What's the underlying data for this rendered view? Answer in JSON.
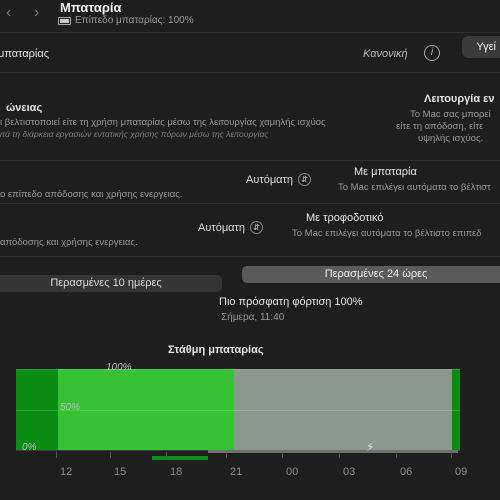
{
  "header": {
    "title": "Μπαταρία",
    "battery_level": "Επίπεδο μπαταρίας: 100%",
    "right_button": "Υγεί"
  },
  "health": {
    "label": "μπαταρίας",
    "value": "Κανονική",
    "info_icon": "info-icon"
  },
  "low_power": {
    "title": "ώνειας",
    "desc_line1": "ι βελτιστοποιεί είτε τη χρήση μπαταρίας μέσω της λειτουργίας χαμηλής ισχύος",
    "desc_line2": "ιτά τη διάρκεια εργασιών εντατικής χρήσης πόρων μέσω της λειτουργίας"
  },
  "high_power": {
    "title": "Λειτουργία εν",
    "desc_line1": "Το Mac σας μπορεί",
    "desc_line2": "είτε τη απόδοση, είτε",
    "desc_line3": "υψηλής ισχύος."
  },
  "battery_row": {
    "left_desc": "ο επίπεδο απόδοσης και χρήσης ενεργειας.",
    "select_value": "Αυτόματη",
    "title": "Με μπαταρία",
    "desc": "Το Mac επιλέγει αυτόματα το βέλτιστ"
  },
  "adapter_row": {
    "left_desc": "απόδοσης και χρήσης ενεργειας.",
    "select_value": "Αυτόματη",
    "title": "Με τροφοδοτικό",
    "desc": "Το Mac επιλέγει αυτόματα το βέλτιστο επιπεδ"
  },
  "segments": {
    "left": "Περασμένες 10 ημέρες",
    "right": "Περασμένες 24 ώρες"
  },
  "last_charge": {
    "title": "Πιο πρόσφατη φόρτιση 100%",
    "time": "Σήμερα, 11:40"
  },
  "chart_section_title": "Στάθμη μπαταρίας",
  "colors": {
    "green_bright": "#37c134",
    "green_dark": "#0b8d14",
    "gray_bar": "#8a9a8a"
  },
  "chart_data": {
    "type": "bar",
    "title": "Στάθμη μπαταρίας",
    "x_ticks": [
      "12",
      "15",
      "18",
      "21",
      "00",
      "03",
      "06",
      "09"
    ],
    "y_ticks": [
      "100%",
      "50%",
      "0%"
    ],
    "ylim": [
      0,
      100
    ],
    "series": [
      {
        "values": [
          100,
          100,
          100,
          100,
          100,
          100,
          100
        ]
      }
    ]
  }
}
